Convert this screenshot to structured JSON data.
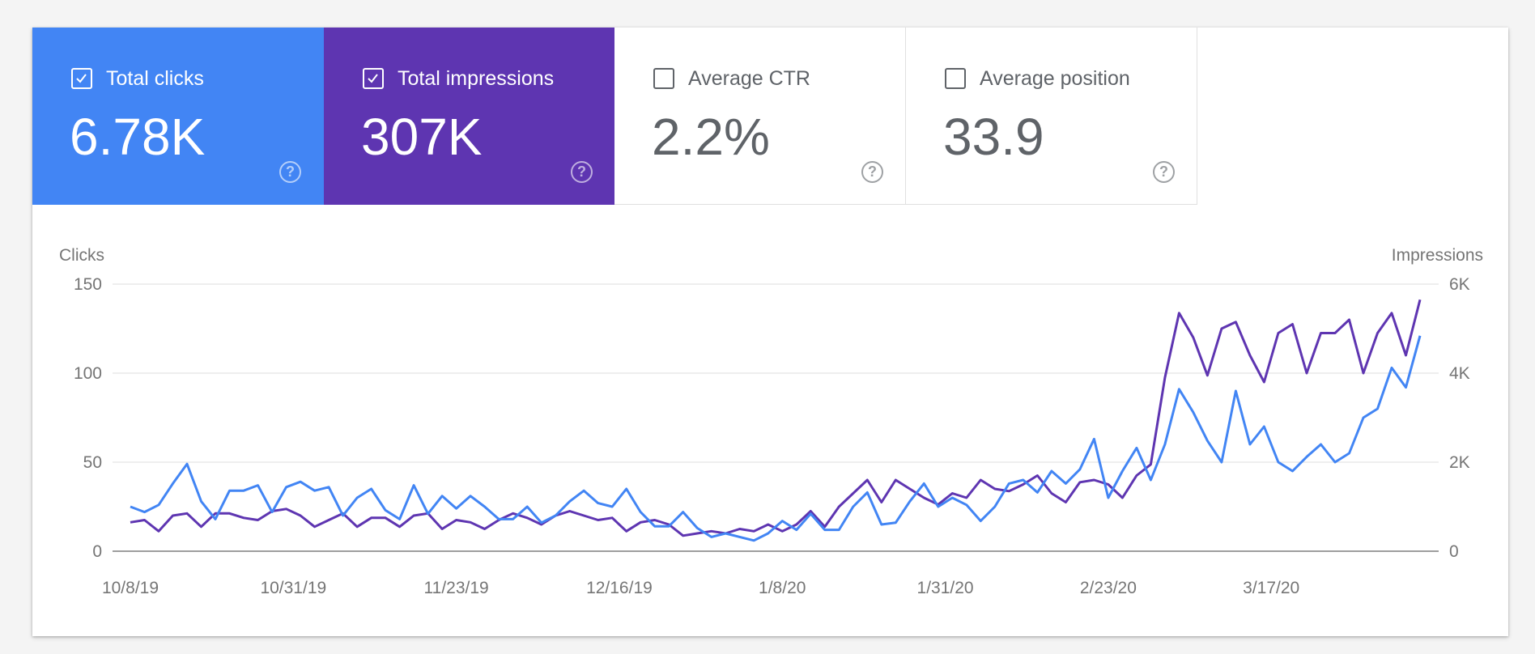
{
  "metrics": [
    {
      "label": "Total clicks",
      "value": "6.78K",
      "checked": true,
      "color": "#4285f4",
      "help_icon": "help-circle-icon"
    },
    {
      "label": "Total impressions",
      "value": "307K",
      "checked": true,
      "color": "#5e35b1",
      "help_icon": "help-circle-icon"
    },
    {
      "label": "Average CTR",
      "value": "2.2%",
      "checked": false,
      "help_icon": "help-circle-icon"
    },
    {
      "label": "Average position",
      "value": "33.9",
      "checked": false,
      "help_icon": "help-circle-icon"
    }
  ],
  "chart_data": {
    "type": "line",
    "ylabel_left": "Clicks",
    "ylabel_right": "Impressions",
    "ylim_left": [
      0,
      150
    ],
    "ylim_right": [
      0,
      6000
    ],
    "yticks_left": [
      "0",
      "50",
      "100",
      "150"
    ],
    "yticks_right": [
      "0",
      "2K",
      "4K",
      "6K"
    ],
    "xticks": [
      "10/8/19",
      "10/31/19",
      "11/23/19",
      "12/16/19",
      "1/8/20",
      "1/31/20",
      "2/23/20",
      "3/17/20"
    ],
    "grid": true,
    "legend": "none",
    "x": [
      "10/8/19",
      "10/10/19",
      "10/12/19",
      "10/14/19",
      "10/16/19",
      "10/18/19",
      "10/20/19",
      "10/22/19",
      "10/24/19",
      "10/26/19",
      "10/28/19",
      "10/30/19",
      "11/1/19",
      "11/3/19",
      "11/5/19",
      "11/7/19",
      "11/9/19",
      "11/11/19",
      "11/13/19",
      "11/15/19",
      "11/17/19",
      "11/19/19",
      "11/21/19",
      "11/23/19",
      "11/25/19",
      "11/27/19",
      "11/29/19",
      "12/1/19",
      "12/3/19",
      "12/5/19",
      "12/7/19",
      "12/9/19",
      "12/11/19",
      "12/13/19",
      "12/15/19",
      "12/17/19",
      "12/19/19",
      "12/21/19",
      "12/23/19",
      "12/25/19",
      "12/27/19",
      "12/29/19",
      "12/31/19",
      "1/2/20",
      "1/4/20",
      "1/6/20",
      "1/8/20",
      "1/10/20",
      "1/12/20",
      "1/14/20",
      "1/16/20",
      "1/18/20",
      "1/20/20",
      "1/22/20",
      "1/24/20",
      "1/26/20",
      "1/28/20",
      "1/30/20",
      "2/1/20",
      "2/3/20",
      "2/5/20",
      "2/7/20",
      "2/9/20",
      "2/11/20",
      "2/13/20",
      "2/15/20",
      "2/17/20",
      "2/19/20",
      "2/21/20",
      "2/23/20",
      "2/25/20",
      "2/27/20",
      "2/29/20",
      "3/2/20",
      "3/4/20",
      "3/6/20",
      "3/8/20",
      "3/10/20",
      "3/12/20",
      "3/14/20",
      "3/16/20",
      "3/18/20",
      "3/20/20",
      "3/22/20",
      "3/24/20",
      "3/26/20",
      "3/28/20",
      "3/30/20",
      "4/1/20",
      "4/3/20",
      "4/5/20",
      "4/7/20"
    ],
    "series": [
      {
        "name": "Clicks",
        "axis": "left",
        "color": "#4285f4",
        "values": [
          25,
          22,
          26,
          38,
          49,
          28,
          18,
          34,
          34,
          37,
          22,
          36,
          39,
          34,
          36,
          20,
          30,
          35,
          23,
          18,
          37,
          21,
          31,
          24,
          31,
          25,
          18,
          18,
          25,
          16,
          20,
          28,
          34,
          27,
          25,
          35,
          22,
          14,
          14,
          22,
          13,
          8,
          10,
          8,
          6,
          10,
          17,
          12,
          21,
          12,
          12,
          25,
          33,
          15,
          16,
          28,
          38,
          25,
          30,
          26,
          17,
          25,
          38,
          40,
          33,
          45,
          38,
          46,
          63,
          30,
          45,
          58,
          40,
          60,
          91,
          78,
          62,
          50,
          90,
          60,
          70,
          50,
          45,
          53,
          60,
          50,
          55,
          75,
          80,
          103,
          92,
          121
        ]
      },
      {
        "name": "Impressions",
        "axis": "right",
        "color": "#5e35b1",
        "values": [
          650,
          700,
          450,
          800,
          850,
          550,
          850,
          850,
          750,
          700,
          900,
          950,
          800,
          550,
          700,
          850,
          550,
          750,
          750,
          550,
          800,
          850,
          500,
          700,
          650,
          500,
          700,
          850,
          750,
          600,
          800,
          900,
          800,
          700,
          750,
          450,
          650,
          700,
          600,
          350,
          400,
          450,
          400,
          500,
          450,
          600,
          450,
          600,
          900,
          550,
          1000,
          1300,
          1600,
          1100,
          1600,
          1400,
          1200,
          1050,
          1300,
          1200,
          1600,
          1400,
          1350,
          1500,
          1700,
          1300,
          1100,
          1550,
          1600,
          1500,
          1200,
          1700,
          1950,
          3900,
          5350,
          4800,
          3950,
          5000,
          5150,
          4400,
          3800,
          4900,
          5100,
          4000,
          4900,
          4900,
          5200,
          4000,
          4900,
          5350,
          4400,
          5650
        ]
      }
    ]
  }
}
